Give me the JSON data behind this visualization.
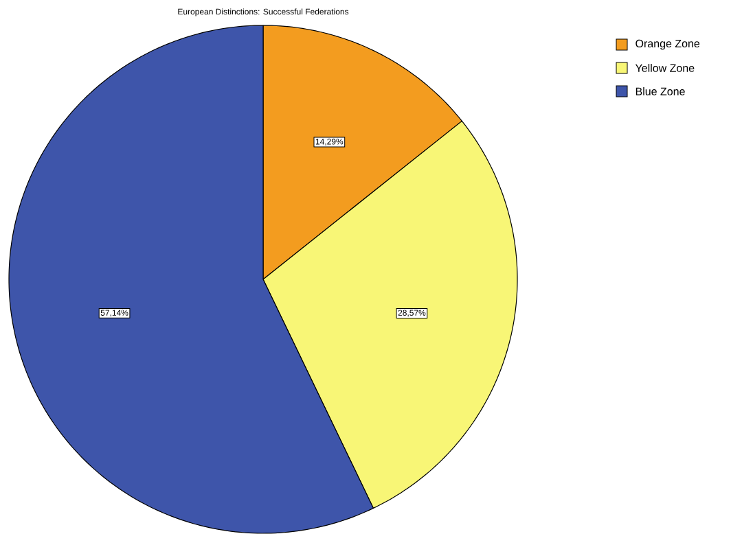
{
  "chart_data": {
    "type": "pie",
    "title": "European Distinctions: Successful Federations",
    "categories": [
      "Orange Zone",
      "Yellow Zone",
      "Blue Zone"
    ],
    "values": [
      14.29,
      28.57,
      57.14
    ],
    "value_labels": [
      "14,29%",
      "28,57%",
      "57,14%"
    ],
    "colors": [
      "#f39c1f",
      "#f8f676",
      "#3e55aa"
    ],
    "legend": "top right"
  }
}
